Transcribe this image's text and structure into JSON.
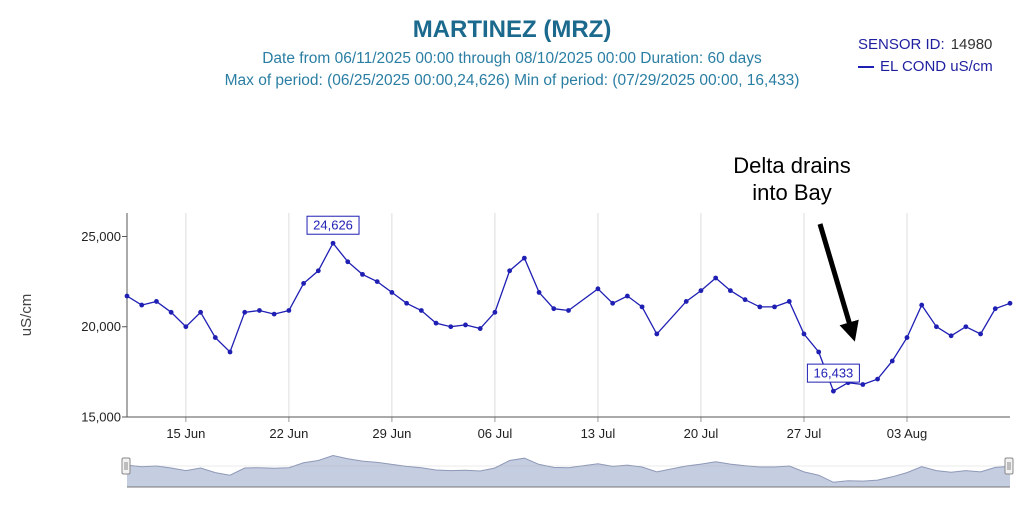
{
  "header": {
    "title": "MARTINEZ (MRZ)",
    "subtitle_line1": "Date from 06/11/2025 00:00  through 08/10/2025 00:00  Duration: 60 days",
    "subtitle_line2": "Max of period: (06/25/2025 00:00,24,626)  Min of period: (07/29/2025 00:00, 16,433)"
  },
  "legend": {
    "sensor_label": "SENSOR ID:",
    "sensor_id": "14980",
    "series_label": "EL COND uS/cm"
  },
  "annotation": {
    "line1": "Delta drains",
    "line2": "into Bay"
  },
  "colors": {
    "series": "#1f1fb4",
    "title": "#1b6a8e",
    "subtitle": "#2a7ea3",
    "navigator_fill": "#c5cde0",
    "navigator_line": "#8e99b8"
  },
  "chart_data": {
    "type": "line",
    "title": "MARTINEZ (MRZ)",
    "ylabel": "uS/cm",
    "ylim": [
      15000,
      26300
    ],
    "yticks": [
      15000,
      20000,
      25000
    ],
    "ytick_labels": [
      "15,000",
      "20,000",
      "25,000"
    ],
    "x_start": "06/11/2025",
    "x_end": "08/10/2025",
    "xticks": [
      "15 Jun",
      "22 Jun",
      "29 Jun",
      "06 Jul",
      "13 Jul",
      "20 Jul",
      "27 Jul",
      "03 Aug"
    ],
    "xtick_dates": [
      "06/15/2025",
      "06/22/2025",
      "06/29/2025",
      "07/06/2025",
      "07/13/2025",
      "07/20/2025",
      "07/27/2025",
      "08/03/2025"
    ],
    "grid": "vertical",
    "legend_position": "top-right",
    "series": [
      {
        "name": "EL COND uS/cm",
        "x": [
          "06/11/2025",
          "06/12/2025",
          "06/13/2025",
          "06/14/2025",
          "06/15/2025",
          "06/16/2025",
          "06/17/2025",
          "06/18/2025",
          "06/19/2025",
          "06/20/2025",
          "06/21/2025",
          "06/22/2025",
          "06/23/2025",
          "06/24/2025",
          "06/25/2025",
          "06/26/2025",
          "06/27/2025",
          "06/28/2025",
          "06/29/2025",
          "06/30/2025",
          "07/01/2025",
          "07/02/2025",
          "07/03/2025",
          "07/04/2025",
          "07/05/2025",
          "07/06/2025",
          "07/07/2025",
          "07/08/2025",
          "07/09/2025",
          "07/10/2025",
          "07/11/2025",
          "07/13/2025",
          "07/14/2025",
          "07/15/2025",
          "07/16/2025",
          "07/17/2025",
          "07/19/2025",
          "07/20/2025",
          "07/21/2025",
          "07/22/2025",
          "07/23/2025",
          "07/24/2025",
          "07/25/2025",
          "07/26/2025",
          "07/27/2025",
          "07/28/2025",
          "07/29/2025",
          "07/30/2025",
          "07/31/2025",
          "08/01/2025",
          "08/02/2025",
          "08/03/2025",
          "08/04/2025",
          "08/05/2025",
          "08/06/2025",
          "08/07/2025",
          "08/08/2025",
          "08/09/2025",
          "08/10/2025"
        ],
        "y": [
          21700,
          21200,
          21400,
          20800,
          20000,
          20800,
          19400,
          18600,
          20800,
          20900,
          20700,
          20900,
          22400,
          23100,
          24626,
          23600,
          22900,
          22500,
          21900,
          21300,
          20900,
          20200,
          20000,
          20100,
          19900,
          20800,
          23100,
          23800,
          21900,
          21000,
          20900,
          22100,
          21300,
          21700,
          21100,
          19600,
          21400,
          22000,
          22700,
          22000,
          21500,
          21100,
          21100,
          21400,
          19600,
          18600,
          16433,
          16900,
          16800,
          17100,
          18100,
          19400,
          21200,
          20000,
          19500,
          20000,
          19600,
          21000,
          21300
        ]
      }
    ],
    "annotations": [
      {
        "label": "24,626",
        "x": "06/25/2025",
        "y": 24626
      },
      {
        "label": "16,433",
        "x": "07/29/2025",
        "y": 16433
      }
    ]
  }
}
